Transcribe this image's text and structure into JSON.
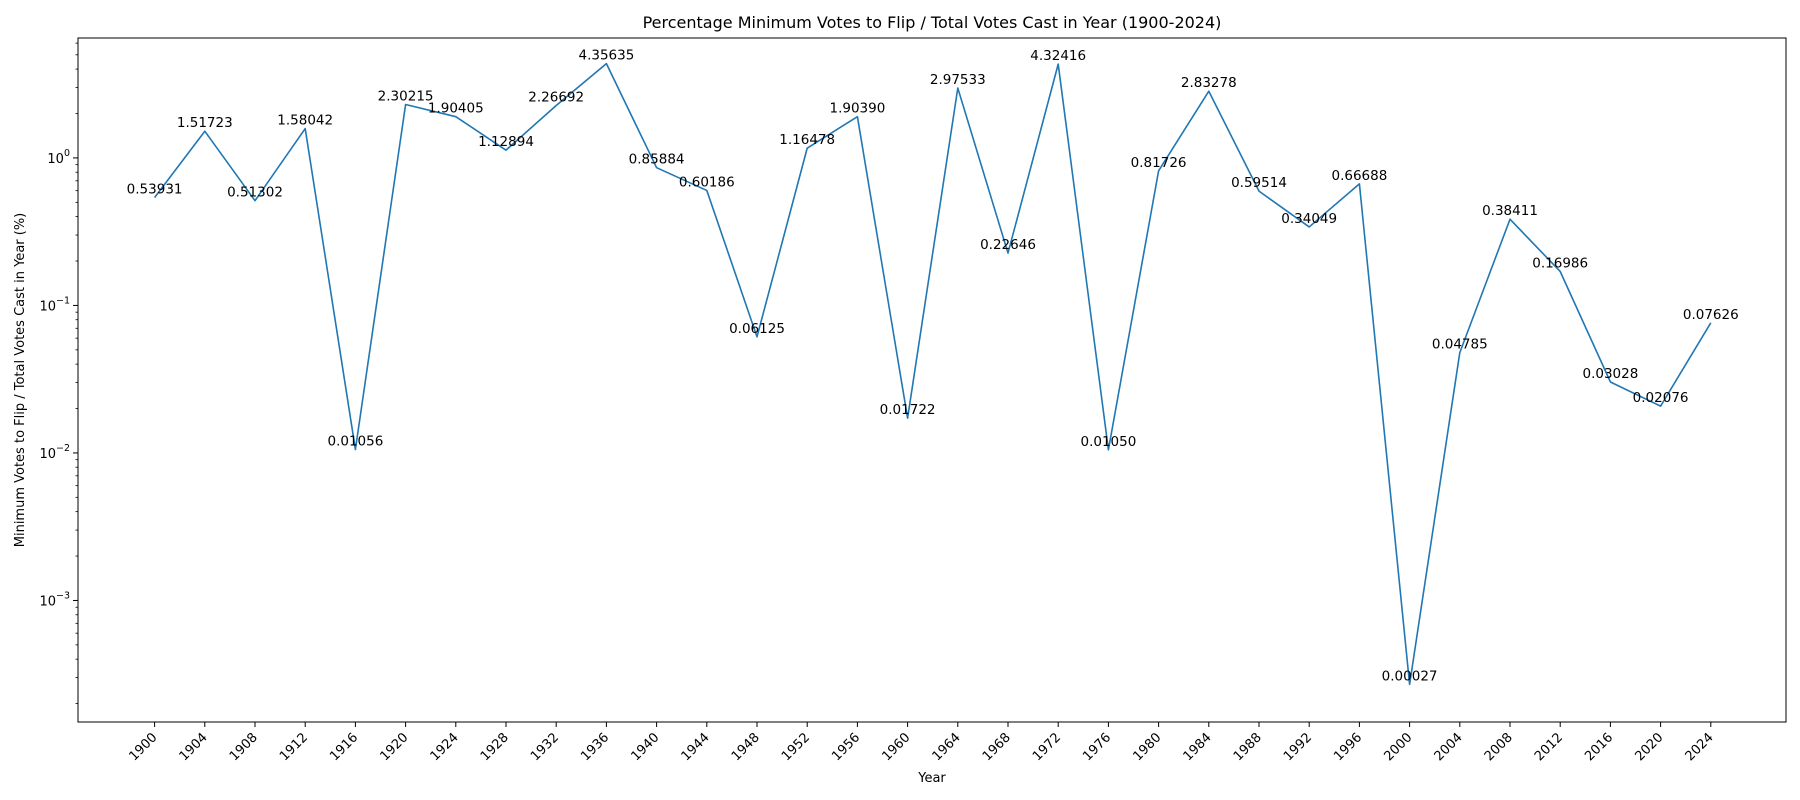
{
  "chart_data": {
    "type": "line",
    "title": "Percentage Minimum Votes to Flip / Total Votes Cast in Year (1900-2024)",
    "xlabel": "Year",
    "ylabel": "Minimum Votes to Flip / Total Votes Cast in Year (%)",
    "yscale": "log",
    "ylim": [
      0.00015,
      6.5
    ],
    "grid": false,
    "line_color": "#1f77b4",
    "y_ticks": [
      {
        "value": 0.001,
        "base": "10",
        "exp": "−3"
      },
      {
        "value": 0.01,
        "base": "10",
        "exp": "−2"
      },
      {
        "value": 0.1,
        "base": "10",
        "exp": "−1"
      },
      {
        "value": 1,
        "base": "10",
        "exp": "0"
      }
    ],
    "x": [
      "1900",
      "1904",
      "1908",
      "1912",
      "1916",
      "1920",
      "1924",
      "1928",
      "1932",
      "1936",
      "1940",
      "1944",
      "1948",
      "1952",
      "1956",
      "1960",
      "1964",
      "1968",
      "1972",
      "1976",
      "1980",
      "1984",
      "1988",
      "1992",
      "1996",
      "2000",
      "2004",
      "2008",
      "2012",
      "2016",
      "2020",
      "2024"
    ],
    "values": [
      0.53931,
      1.51723,
      0.51302,
      1.58042,
      0.01056,
      2.30215,
      1.90405,
      1.12894,
      2.26692,
      4.35635,
      0.85884,
      0.60186,
      0.06125,
      1.16478,
      1.9039,
      0.01722,
      2.97533,
      0.22646,
      4.32416,
      0.0105,
      0.81726,
      2.83278,
      0.59514,
      0.34049,
      0.66688,
      0.00027,
      0.04785,
      0.38411,
      0.16986,
      0.03028,
      0.02076,
      0.07626
    ],
    "data_labels": [
      "0.53931",
      "1.51723",
      "0.51302",
      "1.58042",
      "0.01056",
      "2.30215",
      "1.90405",
      "1.12894",
      "2.26692",
      "4.35635",
      "0.85884",
      "0.60186",
      "0.06125",
      "1.16478",
      "1.90390",
      "0.01722",
      "2.97533",
      "0.22646",
      "4.32416",
      "0.01050",
      "0.81726",
      "2.83278",
      "0.59514",
      "0.34049",
      "0.66688",
      "0.00027",
      "0.04785",
      "0.38411",
      "0.16986",
      "0.03028",
      "0.02076",
      "0.07626"
    ]
  }
}
